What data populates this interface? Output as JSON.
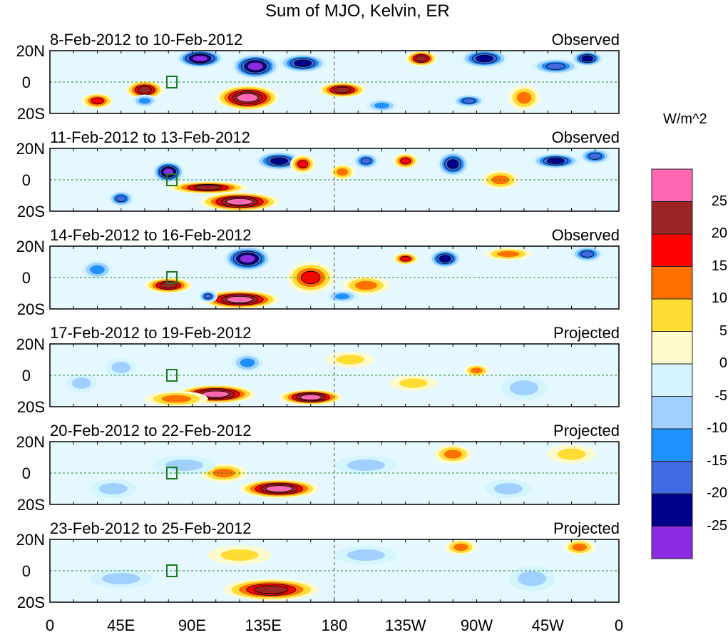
{
  "title": "Sum of MJO, Kelvin, ER",
  "units": "W/m^2",
  "lat_labels": [
    "20N",
    "0",
    "20S"
  ],
  "lon_labels": [
    "0",
    "45E",
    "90E",
    "135E",
    "180",
    "135W",
    "90W",
    "45W",
    "0"
  ],
  "colorbar": {
    "labels": [
      "25",
      "20",
      "15",
      "10",
      "5",
      "0",
      "-5",
      "-10",
      "-15",
      "-20",
      "-25"
    ],
    "colors": [
      "#ff69b4",
      "#9b2424",
      "#ff0000",
      "#ff7000",
      "#ffdd33",
      "#fffacc",
      "#d4f4ff",
      "#a0d0ff",
      "#1e90ff",
      "#4169e1",
      "#00008b",
      "#8a2be2"
    ]
  },
  "panels": [
    {
      "dates": "8-Feb-2012 to 10-Feb-2012",
      "kind": "Observed",
      "blobs": [
        [
          95,
          15,
          -30,
          15,
          6
        ],
        [
          60,
          -5,
          25,
          12,
          6
        ],
        [
          125,
          -10,
          30,
          20,
          8
        ],
        [
          130,
          10,
          -30,
          15,
          8
        ],
        [
          185,
          -5,
          25,
          15,
          5
        ],
        [
          160,
          12,
          -25,
          15,
          6
        ],
        [
          235,
          15,
          25,
          10,
          5
        ],
        [
          275,
          15,
          -25,
          15,
          6
        ],
        [
          300,
          -10,
          15,
          10,
          8
        ],
        [
          320,
          10,
          -20,
          15,
          5
        ],
        [
          340,
          15,
          -25,
          10,
          5
        ],
        [
          30,
          -12,
          20,
          10,
          5
        ],
        [
          60,
          -12,
          -15,
          8,
          4
        ],
        [
          210,
          -15,
          -15,
          10,
          4
        ],
        [
          265,
          -12,
          -20,
          10,
          4
        ]
      ]
    },
    {
      "dates": "11-Feb-2012 to 13-Feb-2012",
      "kind": "Observed",
      "blobs": [
        [
          75,
          5,
          -30,
          10,
          7
        ],
        [
          45,
          -12,
          -20,
          8,
          5
        ],
        [
          100,
          -5,
          25,
          25,
          4
        ],
        [
          120,
          -14,
          28,
          25,
          6
        ],
        [
          145,
          12,
          -25,
          15,
          6
        ],
        [
          160,
          10,
          20,
          8,
          6
        ],
        [
          185,
          5,
          15,
          8,
          5
        ],
        [
          200,
          12,
          -20,
          8,
          5
        ],
        [
          225,
          12,
          20,
          8,
          5
        ],
        [
          255,
          10,
          -25,
          10,
          8
        ],
        [
          285,
          0,
          15,
          12,
          6
        ],
        [
          320,
          12,
          -25,
          15,
          5
        ],
        [
          345,
          15,
          -20,
          10,
          5
        ]
      ]
    },
    {
      "dates": "14-Feb-2012 to 16-Feb-2012",
      "kind": "Observed",
      "blobs": [
        [
          125,
          12,
          -30,
          15,
          8
        ],
        [
          75,
          -5,
          25,
          15,
          5
        ],
        [
          120,
          -14,
          28,
          25,
          6
        ],
        [
          100,
          -12,
          -20,
          6,
          4
        ],
        [
          165,
          0,
          20,
          15,
          10
        ],
        [
          200,
          -5,
          15,
          15,
          6
        ],
        [
          225,
          12,
          20,
          8,
          4
        ],
        [
          250,
          12,
          -25,
          10,
          6
        ],
        [
          290,
          15,
          15,
          15,
          4
        ],
        [
          340,
          15,
          -20,
          10,
          5
        ],
        [
          30,
          5,
          -15,
          10,
          6
        ],
        [
          185,
          -12,
          -15,
          10,
          4
        ]
      ]
    },
    {
      "dates": "17-Feb-2012 to 19-Feb-2012",
      "kind": "Projected",
      "blobs": [
        [
          105,
          -12,
          28,
          25,
          6
        ],
        [
          165,
          -14,
          28,
          20,
          5
        ],
        [
          80,
          -15,
          15,
          20,
          5
        ],
        [
          125,
          8,
          -15,
          10,
          6
        ],
        [
          45,
          5,
          -10,
          10,
          6
        ],
        [
          270,
          3,
          15,
          8,
          4
        ],
        [
          190,
          10,
          10,
          15,
          5
        ],
        [
          230,
          -5,
          10,
          15,
          5
        ],
        [
          20,
          -5,
          -10,
          10,
          6
        ],
        [
          300,
          -8,
          -10,
          15,
          8
        ]
      ]
    },
    {
      "dates": "20-Feb-2012 to 22-Feb-2012",
      "kind": "Projected",
      "blobs": [
        [
          145,
          -10,
          28,
          25,
          6
        ],
        [
          110,
          0,
          15,
          15,
          6
        ],
        [
          85,
          5,
          -10,
          20,
          6
        ],
        [
          255,
          12,
          15,
          12,
          6
        ],
        [
          330,
          12,
          10,
          15,
          6
        ],
        [
          200,
          5,
          -10,
          20,
          6
        ],
        [
          40,
          -10,
          -10,
          15,
          6
        ],
        [
          290,
          -10,
          -10,
          15,
          6
        ]
      ]
    },
    {
      "dates": "23-Feb-2012 to 25-Feb-2012",
      "kind": "Projected",
      "blobs": [
        [
          140,
          -12,
          25,
          30,
          7
        ],
        [
          120,
          10,
          10,
          20,
          6
        ],
        [
          260,
          15,
          15,
          10,
          5
        ],
        [
          335,
          15,
          15,
          10,
          5
        ],
        [
          200,
          10,
          -10,
          20,
          6
        ],
        [
          45,
          -5,
          -10,
          20,
          6
        ],
        [
          305,
          -5,
          -10,
          15,
          8
        ]
      ]
    }
  ]
}
